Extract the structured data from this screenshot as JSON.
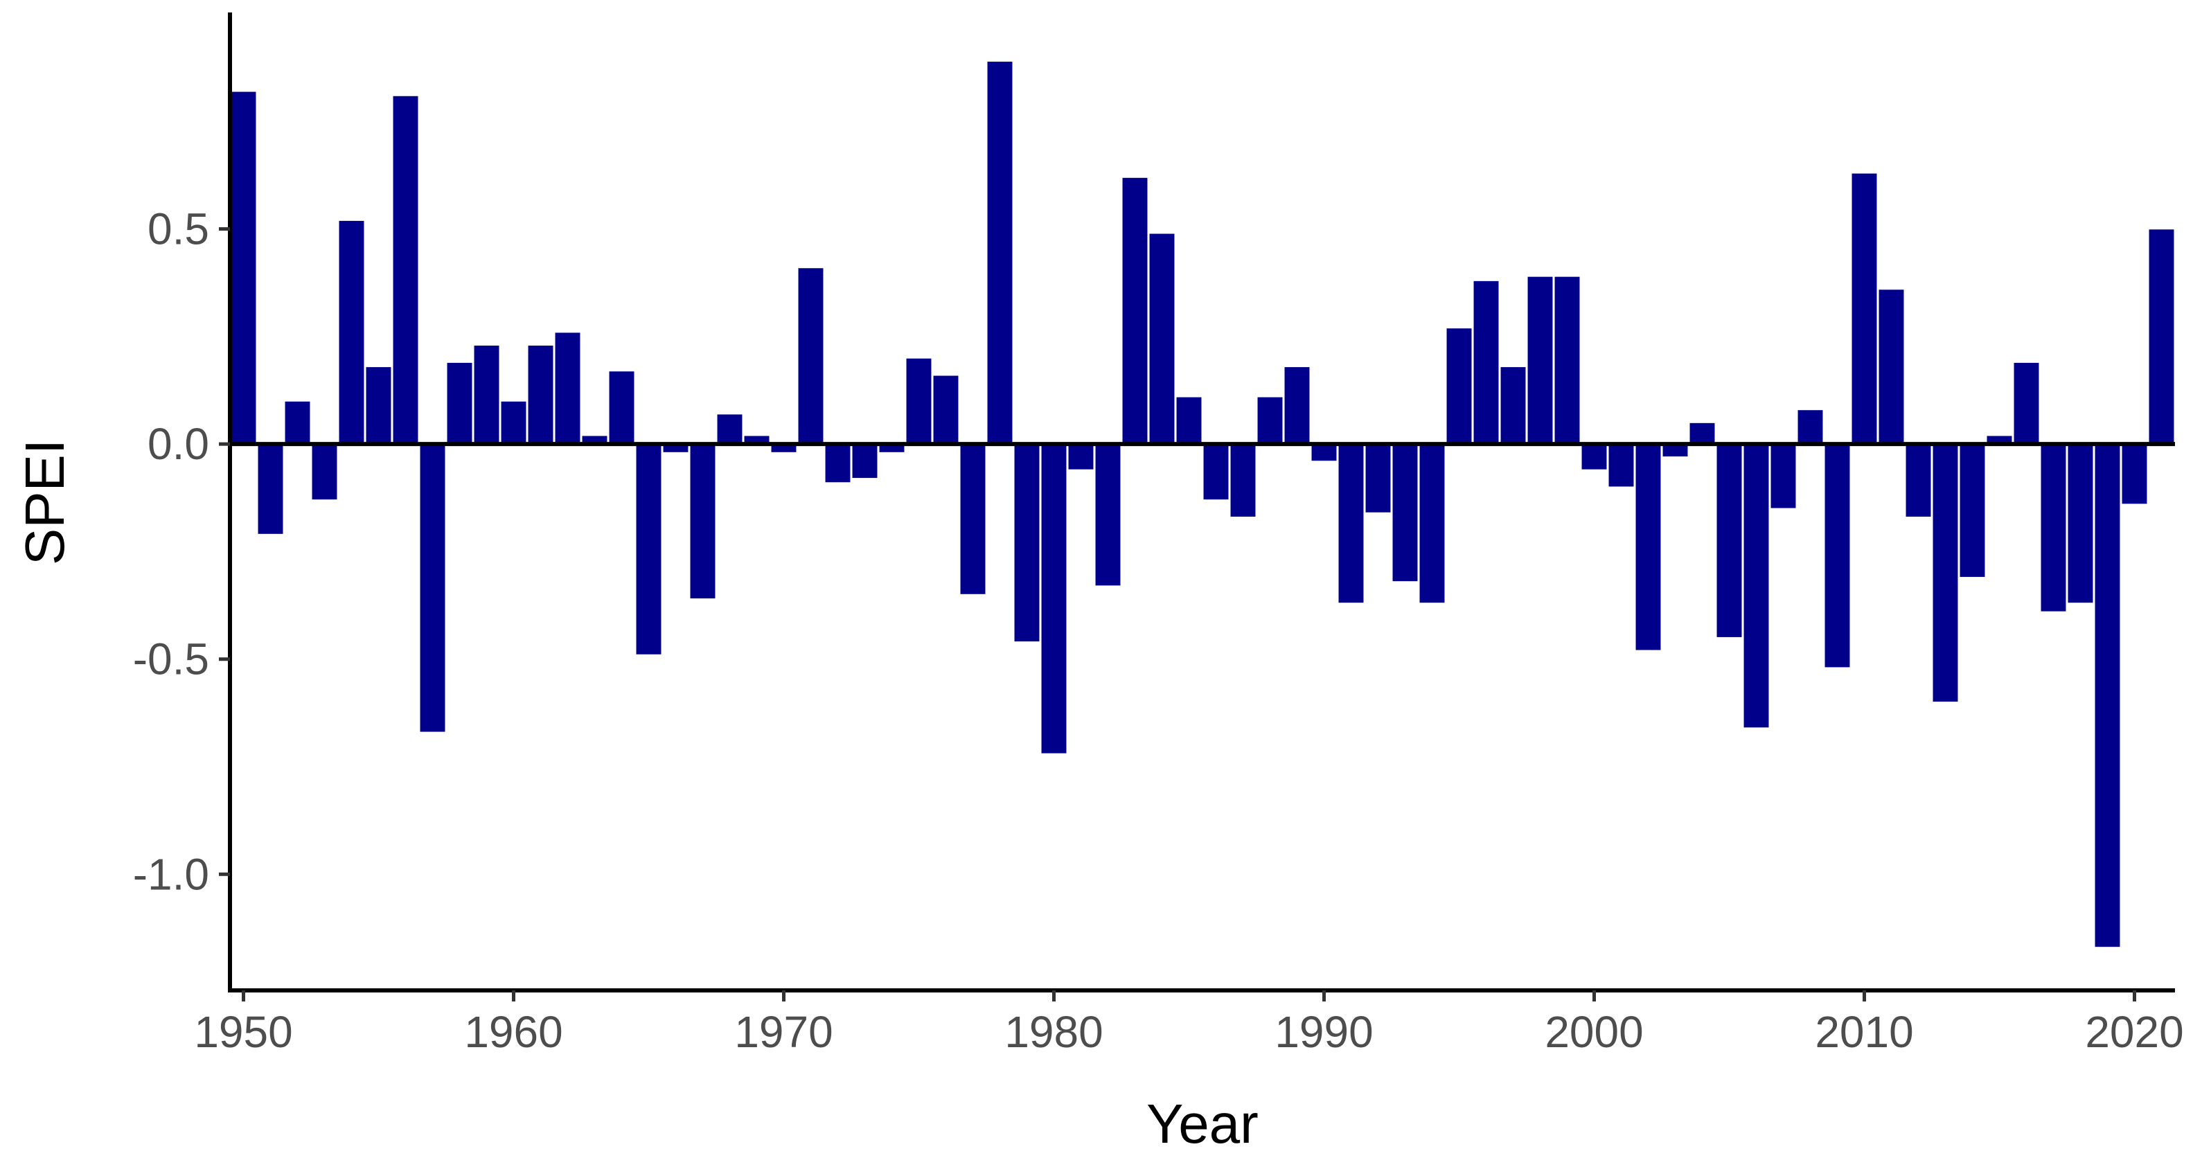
{
  "chart_data": {
    "type": "bar",
    "title": "",
    "xlabel": "Year",
    "ylabel": "SPEI",
    "xlim": [
      1949.5,
      2021.5
    ],
    "ylim": [
      -1.27,
      1.0
    ],
    "x_ticks": [
      1950,
      1960,
      1970,
      1980,
      1990,
      2000,
      2010,
      2020
    ],
    "x_tick_labels": [
      "1950",
      "1960",
      "1970",
      "1980",
      "1990",
      "2000",
      "2010",
      "2020"
    ],
    "y_ticks": [
      0.5,
      0.0,
      -0.5,
      -1.0
    ],
    "y_tick_labels": [
      "0.5",
      "0.0",
      "-0.5",
      "-1.0"
    ],
    "grid": false,
    "zero_line": true,
    "bar_color": "#00008b",
    "bar_edge_color": "#ffffff",
    "years": [
      1950,
      1951,
      1952,
      1953,
      1954,
      1955,
      1956,
      1957,
      1958,
      1959,
      1960,
      1961,
      1962,
      1963,
      1964,
      1965,
      1966,
      1967,
      1968,
      1969,
      1970,
      1971,
      1972,
      1973,
      1974,
      1975,
      1976,
      1977,
      1978,
      1979,
      1980,
      1981,
      1982,
      1983,
      1984,
      1985,
      1986,
      1987,
      1988,
      1989,
      1990,
      1991,
      1992,
      1993,
      1994,
      1995,
      1996,
      1997,
      1998,
      1999,
      2000,
      2001,
      2002,
      2003,
      2004,
      2005,
      2006,
      2007,
      2008,
      2009,
      2010,
      2011,
      2012,
      2013,
      2014,
      2015,
      2016,
      2017,
      2018,
      2019,
      2020,
      2021
    ],
    "values": [
      0.82,
      -0.21,
      0.1,
      -0.13,
      0.52,
      0.18,
      0.81,
      -0.67,
      0.19,
      0.23,
      0.1,
      0.23,
      0.26,
      0.02,
      0.17,
      -0.49,
      -0.02,
      -0.36,
      0.07,
      0.02,
      -0.02,
      0.41,
      -0.09,
      -0.08,
      -0.02,
      0.2,
      0.16,
      -0.35,
      0.89,
      -0.46,
      -0.72,
      -0.06,
      -0.33,
      0.62,
      0.49,
      0.11,
      -0.13,
      -0.17,
      0.11,
      0.18,
      -0.04,
      -0.37,
      -0.16,
      -0.32,
      -0.37,
      0.27,
      0.38,
      0.18,
      0.39,
      0.39,
      -0.06,
      -0.1,
      -0.48,
      -0.03,
      0.05,
      -0.45,
      -0.66,
      -0.15,
      0.08,
      -0.52,
      0.63,
      0.36,
      -0.17,
      -0.6,
      -0.31,
      0.02,
      0.19,
      -0.39,
      -0.37,
      -1.17,
      -0.14,
      0.5
    ]
  }
}
